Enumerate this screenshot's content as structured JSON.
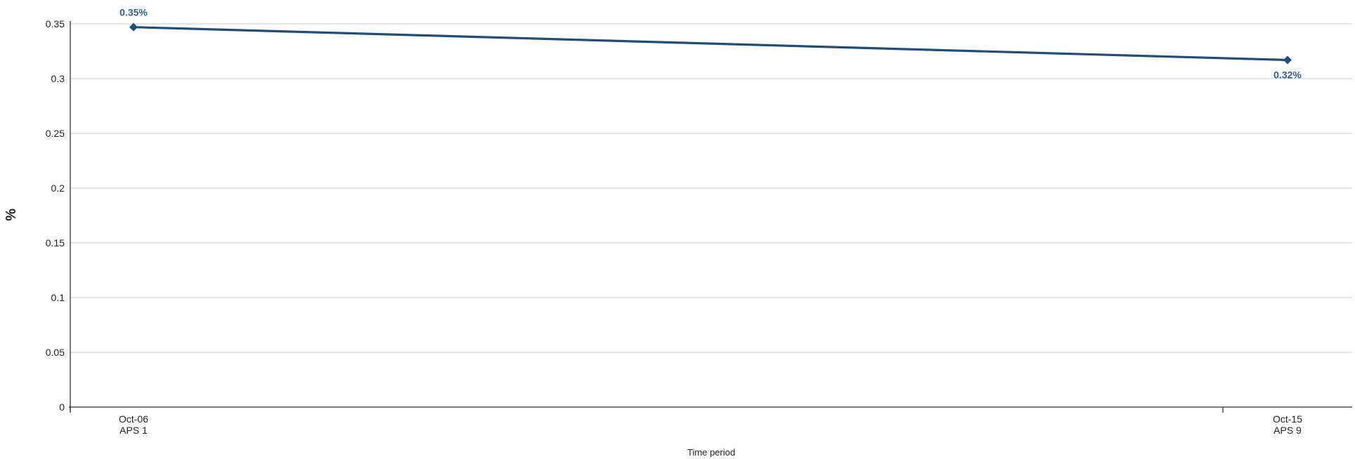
{
  "chart_data": {
    "type": "line",
    "title": "",
    "xlabel": "Time period",
    "ylabel": "%",
    "x": [
      [
        "Oct-06",
        "APS 1"
      ],
      [
        "Oct-15",
        "APS 9"
      ]
    ],
    "ylim": [
      0,
      0.35
    ],
    "yticks": [
      "0",
      "0.05",
      "0.1",
      "0.15",
      "0.2",
      "0.25",
      "0.3",
      "0.35"
    ],
    "grid": true,
    "series": [
      {
        "values": [
          0.347,
          0.317
        ],
        "labels": [
          "0.35%",
          "0.32%"
        ],
        "marker": "diamond"
      }
    ],
    "colors": {
      "series": "#1f4e79",
      "label": "#2f5d87"
    }
  }
}
